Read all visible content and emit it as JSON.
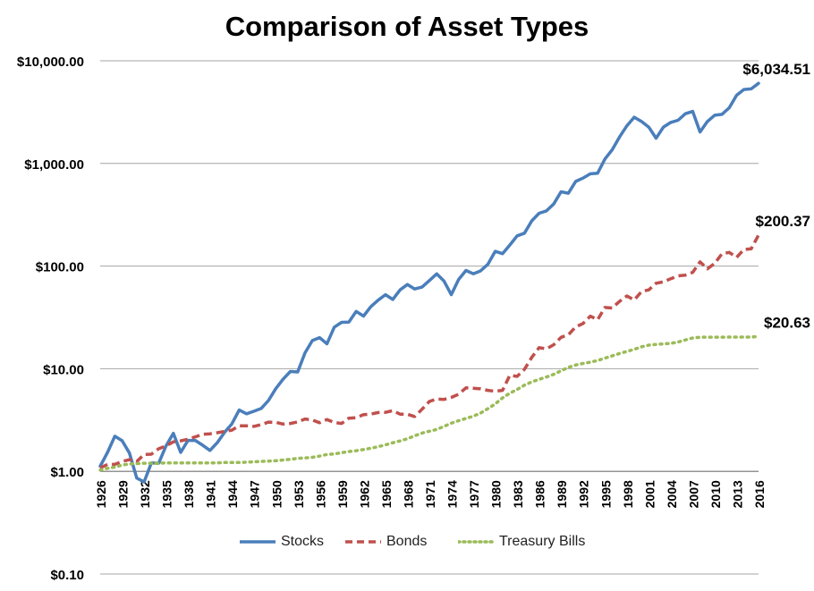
{
  "chart_data": {
    "type": "line",
    "title": "Comparison of Asset Types",
    "xlabel": "",
    "ylabel": "",
    "y_scale": "log",
    "ylim": [
      0.1,
      10000
    ],
    "y_ticks": [
      {
        "value": 10000,
        "label": "$10,000.00"
      },
      {
        "value": 1000,
        "label": "$1,000.00"
      },
      {
        "value": 100,
        "label": "$100.00"
      },
      {
        "value": 10,
        "label": "$10.00"
      },
      {
        "value": 1,
        "label": "$1.00"
      },
      {
        "value": 0.1,
        "label": "$0.10"
      }
    ],
    "x_tick_labels": [
      "1926",
      "1929",
      "1932",
      "1935",
      "1938",
      "1941",
      "1944",
      "1947",
      "1950",
      "1953",
      "1956",
      "1959",
      "1962",
      "1965",
      "1968",
      "1971",
      "1974",
      "1977",
      "1980",
      "1983",
      "1986",
      "1989",
      "1992",
      "1995",
      "1998",
      "2001",
      "2004",
      "2007",
      "2010",
      "2013",
      "2016"
    ],
    "grid": "horizontal",
    "legend": "bottom",
    "x": [
      1926,
      1927,
      1928,
      1929,
      1930,
      1931,
      1932,
      1933,
      1934,
      1935,
      1936,
      1937,
      1938,
      1939,
      1940,
      1941,
      1942,
      1943,
      1944,
      1945,
      1946,
      1947,
      1948,
      1949,
      1950,
      1951,
      1952,
      1953,
      1954,
      1955,
      1956,
      1957,
      1958,
      1959,
      1960,
      1961,
      1962,
      1963,
      1964,
      1965,
      1966,
      1967,
      1968,
      1969,
      1970,
      1971,
      1972,
      1973,
      1974,
      1975,
      1976,
      1977,
      1978,
      1979,
      1980,
      1981,
      1982,
      1983,
      1984,
      1985,
      1986,
      1987,
      1988,
      1989,
      1990,
      1991,
      1992,
      1993,
      1994,
      1995,
      1996,
      1997,
      1998,
      1999,
      2000,
      2001,
      2002,
      2003,
      2004,
      2005,
      2006,
      2007,
      2008,
      2009,
      2010,
      2011,
      2012,
      2013,
      2014,
      2015,
      2016
    ],
    "series": [
      {
        "name": "Stocks",
        "color": "#4a7ebb",
        "style": "solid",
        "end_label": "$6,034.51",
        "values": [
          1.12,
          1.53,
          2.2,
          1.99,
          1.51,
          0.86,
          0.79,
          1.21,
          1.2,
          1.77,
          2.35,
          1.53,
          2.0,
          2.0,
          1.8,
          1.6,
          1.9,
          2.4,
          2.9,
          3.96,
          3.64,
          3.85,
          4.1,
          4.9,
          6.4,
          7.9,
          9.4,
          9.3,
          14.3,
          18.8,
          20.1,
          17.5,
          25.4,
          28.3,
          28.5,
          36.2,
          32.6,
          40.3,
          46.6,
          52.6,
          47.3,
          58.7,
          66.1,
          59.9,
          62.4,
          72.2,
          84.0,
          71.4,
          52.6,
          74.0,
          90.7,
          84.2,
          89.8,
          104.0,
          139.1,
          132.2,
          160.6,
          196.8,
          209.1,
          276.0,
          327.4,
          344.6,
          402.0,
          529.4,
          512.7,
          668.6,
          719.6,
          792.2,
          802.9,
          1104.7,
          1358.2,
          1811.2,
          2328.7,
          2818.8,
          2562.2,
          2257.7,
          1758.9,
          2263.5,
          2509.8,
          2633.0,
          3048.9,
          3216.4,
          2026.5,
          2562.8,
          2948.7,
          3010.5,
          3492.1,
          4623.1,
          5253.6,
          5326.2,
          6034.51
        ]
      },
      {
        "name": "Bonds",
        "color": "#c0504d",
        "style": "dashed",
        "end_label": "$200.37",
        "values": [
          1.08,
          1.17,
          1.17,
          1.25,
          1.3,
          1.25,
          1.46,
          1.47,
          1.66,
          1.77,
          1.94,
          1.98,
          2.06,
          2.17,
          2.3,
          2.32,
          2.38,
          2.45,
          2.52,
          2.78,
          2.78,
          2.74,
          2.85,
          3.02,
          3.01,
          2.89,
          2.93,
          3.03,
          3.24,
          3.16,
          2.98,
          3.2,
          2.99,
          2.93,
          3.3,
          3.33,
          3.57,
          3.62,
          3.74,
          3.76,
          3.9,
          3.61,
          3.6,
          3.42,
          4.03,
          4.8,
          5.07,
          5.03,
          5.25,
          5.63,
          6.51,
          6.46,
          6.37,
          6.16,
          6.03,
          6.16,
          8.63,
          8.42,
          9.86,
          12.89,
          16.04,
          15.62,
          17.12,
          20.21,
          21.45,
          25.59,
          27.53,
          32.53,
          29.99,
          39.49,
          39.05,
          45.25,
          51.16,
          46.77,
          56.48,
          58.7,
          68.0,
          70.3,
          75.37,
          80.24,
          81.6,
          86.91,
          109.82,
          94.02,
          106.23,
          131.51,
          135.88,
          121.7,
          145.16,
          147.19,
          200.37
        ]
      },
      {
        "name": "Treasury Bills",
        "color": "#9bbb59",
        "style": "dotted",
        "end_label": "$20.63",
        "values": [
          1.03,
          1.07,
          1.1,
          1.15,
          1.18,
          1.19,
          1.2,
          1.2,
          1.2,
          1.21,
          1.21,
          1.21,
          1.21,
          1.21,
          1.21,
          1.21,
          1.21,
          1.22,
          1.22,
          1.22,
          1.23,
          1.24,
          1.25,
          1.26,
          1.27,
          1.29,
          1.31,
          1.34,
          1.35,
          1.37,
          1.41,
          1.46,
          1.48,
          1.52,
          1.56,
          1.59,
          1.63,
          1.68,
          1.74,
          1.81,
          1.9,
          1.98,
          2.08,
          2.22,
          2.36,
          2.46,
          2.56,
          2.74,
          2.95,
          3.12,
          3.28,
          3.45,
          3.7,
          4.08,
          4.54,
          5.2,
          5.77,
          6.28,
          6.91,
          7.45,
          7.88,
          8.29,
          8.82,
          9.55,
          10.3,
          10.87,
          11.25,
          11.58,
          12.03,
          12.69,
          13.35,
          14.05,
          14.74,
          15.44,
          16.36,
          16.99,
          17.27,
          17.45,
          17.67,
          18.19,
          19.06,
          19.93,
          20.25,
          20.28,
          20.3,
          20.31,
          20.33,
          20.34,
          20.35,
          20.36,
          20.63
        ]
      }
    ]
  }
}
